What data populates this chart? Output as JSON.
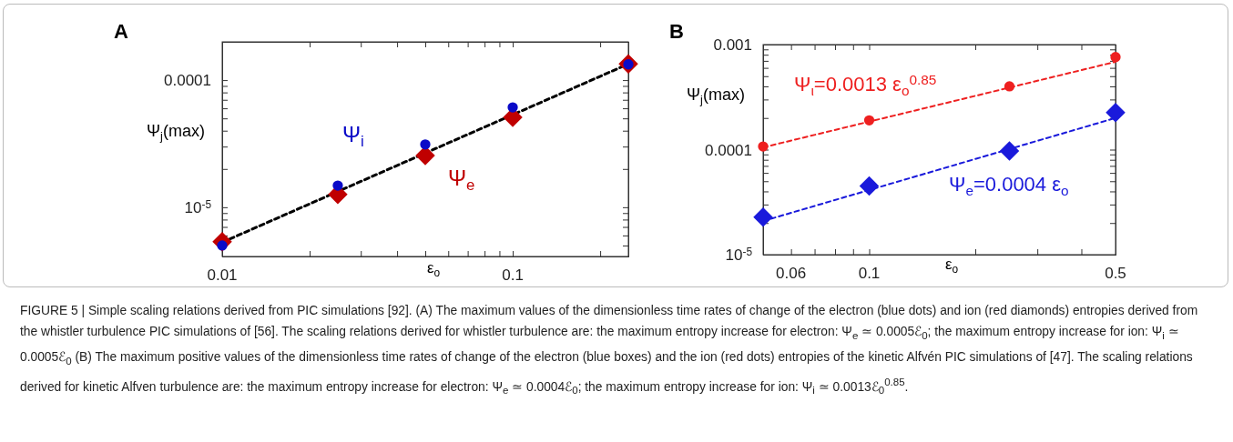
{
  "chart_data": [
    {
      "type": "scatter",
      "title": "A",
      "xlabel": "ε$_{o}$",
      "ylabel": "Ψ$_{j}$(max)",
      "log": "xy",
      "xlim": [
        0.01,
        0.25
      ],
      "ylim": [
        4.1e-06,
        0.0002
      ],
      "xticks": [
        0.01,
        {
          "value": 0.02,
          "label": null
        },
        {
          "value": 0.03,
          "label": null
        },
        {
          "value": 0.04,
          "label": null
        },
        {
          "value": 0.05,
          "label": null
        },
        {
          "value": 0.06,
          "label": null
        },
        {
          "value": 0.07,
          "label": null
        },
        {
          "value": 0.08,
          "label": null
        },
        {
          "value": 0.09,
          "label": null
        },
        0.1,
        {
          "value": 0.2,
          "label": null
        }
      ],
      "yticks": [
        {
          "value": 5e-06,
          "label": null
        },
        {
          "value": 6e-06,
          "label": null
        },
        {
          "value": 7e-06,
          "label": null
        },
        {
          "value": 8e-06,
          "label": null
        },
        {
          "value": 9e-06,
          "label": null
        },
        {
          "value": 1e-05,
          "label": "10$^{-5}$"
        },
        {
          "value": 2e-05,
          "label": null
        },
        {
          "value": 3e-05,
          "label": null
        },
        {
          "value": 4e-05,
          "label": null
        },
        {
          "value": 5e-05,
          "label": null
        },
        {
          "value": 6e-05,
          "label": null
        },
        {
          "value": 7e-05,
          "label": null
        },
        {
          "value": 8e-05,
          "label": null
        },
        {
          "value": 9e-05,
          "label": null
        },
        {
          "value": 0.0001,
          "label": "0.0001"
        },
        {
          "value": 0.0002,
          "label": null
        }
      ],
      "series": [
        {
          "type": "line",
          "color": "#000000",
          "line_style": "dashed",
          "marker": "none",
          "x": [
            0.01,
            0.25
          ],
          "values": [
            5.3e-06,
            0.000134
          ]
        },
        {
          "name": "Ψ$_{e}$",
          "color": "#c00000",
          "marker": "diamond",
          "x": [
            0.01,
            0.025,
            0.05,
            0.1,
            0.25
          ],
          "values": [
            5.35e-06,
            1.26e-05,
            2.55e-05,
            5.1e-05,
            0.000134
          ]
        },
        {
          "name": "Ψ$_{i}$",
          "color": "#0a0ac8",
          "marker": "circle",
          "x": [
            0.01,
            0.025,
            0.05,
            0.1,
            0.25
          ],
          "values": [
            5e-06,
            1.48e-05,
            3.12e-05,
            6.1e-05,
            0.000133
          ]
        }
      ],
      "annotations": [
        "FIGURE 5 | Simple scaling relations derived from PIC simulations [92]. (A) The maximum values of the dimensionless time rates of change of the electron (blue dots) and ion (red diamonds) entropies derived from the whistler turbulence PIC simulations of [56]. The scaling relations derived for whistler turbulence are: the maximum entropy increase for electron: Ψ$_{e}$ ≃ 0.0005ℰ$_{0}$; the maximum entropy increase for ion: Ψ$_{i}$ ≃ 0.0005ℰ$_{0}$ (B) The maximum positive values of the dimensionless time rates of change of the electron (blue boxes) and the ion (red dots) entropies of the kinetic Alfvén PIC simulations of [47]. The scaling relations derived for kinetic Alfven turbulence are: the maximum entropy increase for electron: Ψ$_{e}$ ≃ 0.0004ℰ$_{0}$; the maximum entropy increase for ion: Ψ$_{i}$ ≃ 0.0013ℰ$_{0}$$^{0.85}$."
      ]
    },
    {
      "type": "scatter",
      "title": "B",
      "xlabel": "ε$_{o}$",
      "ylabel": "Ψ$_{j}$(max)",
      "log": "xy",
      "xlim": [
        0.05,
        0.5
      ],
      "ylim": [
        1e-05,
        0.001
      ],
      "xticks": [
        0.06,
        {
          "value": 0.07,
          "label": null
        },
        {
          "value": 0.08,
          "label": null
        },
        {
          "value": 0.09,
          "label": null
        },
        0.1,
        {
          "value": 0.2,
          "label": null
        },
        {
          "value": 0.3,
          "label": null
        },
        {
          "value": 0.4,
          "label": null
        },
        0.5
      ],
      "yticks": [
        {
          "value": 1e-05,
          "label": "10$^{-5}$"
        },
        {
          "value": 2e-05,
          "label": null
        },
        {
          "value": 3e-05,
          "label": null
        },
        {
          "value": 4e-05,
          "label": null
        },
        {
          "value": 5e-05,
          "label": null
        },
        {
          "value": 6e-05,
          "label": null
        },
        {
          "value": 7e-05,
          "label": null
        },
        {
          "value": 8e-05,
          "label": null
        },
        {
          "value": 9e-05,
          "label": null
        },
        {
          "value": 0.0001,
          "label": "0.0001"
        },
        {
          "value": 0.0002,
          "label": null
        },
        {
          "value": 0.0003,
          "label": null
        },
        {
          "value": 0.0004,
          "label": null
        },
        {
          "value": 0.0005,
          "label": null
        },
        {
          "value": 0.0006,
          "label": null
        },
        {
          "value": 0.0007,
          "label": null
        },
        {
          "value": 0.0008,
          "label": null
        },
        {
          "value": 0.0009,
          "label": null
        },
        {
          "value": 0.001,
          "label": "0.001"
        }
      ],
      "series": [
        {
          "name": "Ψ$_{ι}$=0.0013 ε$_{o}$$^{0.85}$",
          "type": "line",
          "color": "#ee2020",
          "line_style": "dashed",
          "marker": "none",
          "x": [
            0.05,
            0.5
          ],
          "values": [
            0.000105,
            0.000685
          ]
        },
        {
          "name": "Ψ$_{e}$=0.0004 ε$_{o}$",
          "type": "line",
          "color": "#1a1adb",
          "line_style": "dashed",
          "marker": "none",
          "x": [
            0.05,
            0.5
          ],
          "values": [
            2.09e-05,
            0.0002
          ]
        },
        {
          "color": "#ee2020",
          "marker": "circle",
          "x": [
            0.05,
            0.1,
            0.25,
            0.5
          ],
          "values": [
            0.000107,
            0.00019,
            0.0004,
            0.00076
          ]
        },
        {
          "color": "#1a1adb",
          "marker": "diamond",
          "x": [
            0.05,
            0.1,
            0.25,
            0.5
          ],
          "values": [
            2.28e-05,
            4.5e-05,
            9.7e-05,
            0.000225
          ]
        }
      ]
    }
  ]
}
